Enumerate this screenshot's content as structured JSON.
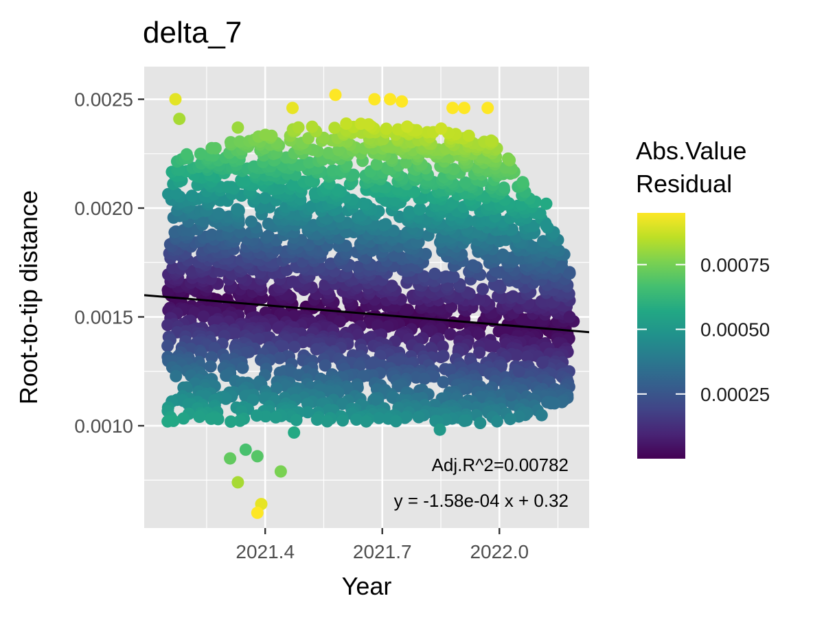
{
  "chart_data": {
    "type": "scatter",
    "title": "delta_7",
    "xlabel": "Year",
    "ylabel": "Root-to-tip distance",
    "x_ticks": [
      {
        "value": 2021.4,
        "label": "2021.4"
      },
      {
        "value": 2021.7,
        "label": "2021.7"
      },
      {
        "value": 2022.0,
        "label": "2022.0"
      }
    ],
    "y_ticks": [
      {
        "value": 0.001,
        "label": "0.0010"
      },
      {
        "value": 0.0015,
        "label": "0.0015"
      },
      {
        "value": 0.002,
        "label": "0.0020"
      },
      {
        "value": 0.0025,
        "label": "0.0025"
      }
    ],
    "xlim": [
      2021.09,
      2022.23
    ],
    "ylim": [
      0.00053,
      0.00265
    ],
    "grid": true,
    "panel_background": "#e5e5e5",
    "regression": {
      "slope": -0.000158,
      "intercept": 0.32,
      "x_start": 2021.09,
      "y_start": 0.0016,
      "x_end": 2022.23,
      "y_end": 0.00143
    },
    "annotations": [
      {
        "text": "Adj.R^2=0.00782"
      },
      {
        "text": "y = -1.58e-04 x + 0.32"
      }
    ],
    "color_scale": {
      "name": "viridis",
      "title_lines": [
        "Abs.Value",
        "Residual"
      ],
      "min": 0.0,
      "max": 0.00095,
      "ticks": [
        {
          "value": 0.00025,
          "label": "0.00025"
        },
        {
          "value": 0.0005,
          "label": "0.00050"
        },
        {
          "value": 0.00075,
          "label": "0.00075"
        }
      ]
    },
    "point_cloud": {
      "x_range": [
        2021.15,
        2022.18
      ],
      "core_y_range": [
        0.00102,
        0.00222
      ],
      "count": 2600
    },
    "outliers": [
      {
        "x": 2021.17,
        "y": 0.0025
      },
      {
        "x": 2021.18,
        "y": 0.00241
      },
      {
        "x": 2021.33,
        "y": 0.00237
      },
      {
        "x": 2021.47,
        "y": 0.00246
      },
      {
        "x": 2021.58,
        "y": 0.00252
      },
      {
        "x": 2021.68,
        "y": 0.0025
      },
      {
        "x": 2021.72,
        "y": 0.0025
      },
      {
        "x": 2021.75,
        "y": 0.00249
      },
      {
        "x": 2021.88,
        "y": 0.00246
      },
      {
        "x": 2021.91,
        "y": 0.00246
      },
      {
        "x": 2021.97,
        "y": 0.00246
      },
      {
        "x": 2021.31,
        "y": 0.00085
      },
      {
        "x": 2021.33,
        "y": 0.00074
      },
      {
        "x": 2021.38,
        "y": 0.00086
      },
      {
        "x": 2021.44,
        "y": 0.00079
      },
      {
        "x": 2021.39,
        "y": 0.00064
      },
      {
        "x": 2021.38,
        "y": 0.0006
      },
      {
        "x": 2021.35,
        "y": 0.00089
      },
      {
        "x": 2022.12,
        "y": 0.00192
      },
      {
        "x": 2022.16,
        "y": 0.00173
      },
      {
        "x": 2022.18,
        "y": 0.0017
      },
      {
        "x": 2022.19,
        "y": 0.00148
      },
      {
        "x": 2022.18,
        "y": 0.0015
      },
      {
        "x": 2022.11,
        "y": 0.00129
      },
      {
        "x": 2022.05,
        "y": 0.00125
      },
      {
        "x": 2022.03,
        "y": 0.00114
      },
      {
        "x": 2022.12,
        "y": 0.00202
      }
    ]
  }
}
